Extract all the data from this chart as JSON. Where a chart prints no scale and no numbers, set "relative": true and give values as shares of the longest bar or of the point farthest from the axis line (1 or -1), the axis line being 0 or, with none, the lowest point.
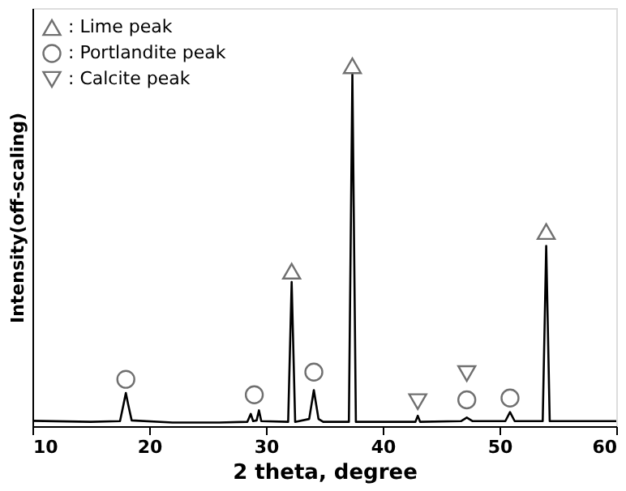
{
  "chart_data": {
    "type": "line",
    "relative": true,
    "xlabel": "2 theta, degree",
    "ylabel": "Intensity(off-scaling)",
    "xlim": [
      10,
      60
    ],
    "xticks": [
      10,
      20,
      30,
      40,
      50,
      60
    ],
    "tick_labels": "x",
    "grid": false,
    "legend": "top left",
    "series": [
      {
        "color": "#000000",
        "marker": "none",
        "line_style": "solid",
        "x": [
          10,
          15,
          17.5,
          17.8,
          18.0,
          18.2,
          18.5,
          22,
          26,
          28.4,
          28.7,
          28.9,
          29.2,
          29.4,
          29.6,
          31.9,
          32.2,
          32.5,
          33.7,
          34.1,
          34.5,
          34.9,
          37.1,
          37.4,
          37.7,
          42.8,
          43.0,
          43.2,
          46.7,
          47.2,
          47.7,
          50.5,
          50.9,
          51.3,
          53.7,
          54.0,
          54.3,
          60
        ],
        "values": [
          0.015,
          0.012,
          0.014,
          0.06,
          0.092,
          0.06,
          0.016,
          0.01,
          0.01,
          0.012,
          0.034,
          0.014,
          0.016,
          0.044,
          0.014,
          0.012,
          0.4,
          0.012,
          0.02,
          0.1,
          0.02,
          0.012,
          0.012,
          0.976,
          0.012,
          0.012,
          0.029,
          0.012,
          0.014,
          0.024,
          0.014,
          0.014,
          0.039,
          0.014,
          0.014,
          0.5,
          0.014,
          0.014
        ]
      },
      {
        "type": "scatter",
        "name": ": Lime peak",
        "color": "#707070",
        "marker": "triangle",
        "x": [
          32.2,
          37.4,
          54.0
        ],
        "values": [
          0.43,
          1.0,
          0.54
        ]
      },
      {
        "type": "scatter",
        "name": ": Portlandite peak",
        "color": "#707070",
        "marker": "circle",
        "x": [
          18.0,
          29.0,
          34.1,
          47.2,
          50.9
        ],
        "values": [
          0.13,
          0.087,
          0.15,
          0.073,
          0.078
        ]
      },
      {
        "type": "scatter",
        "name": ": Calcite peak",
        "color": "#707070",
        "marker": "triangle-down",
        "x": [
          43.0,
          47.2
        ],
        "values": [
          0.068,
          0.146
        ]
      }
    ]
  }
}
